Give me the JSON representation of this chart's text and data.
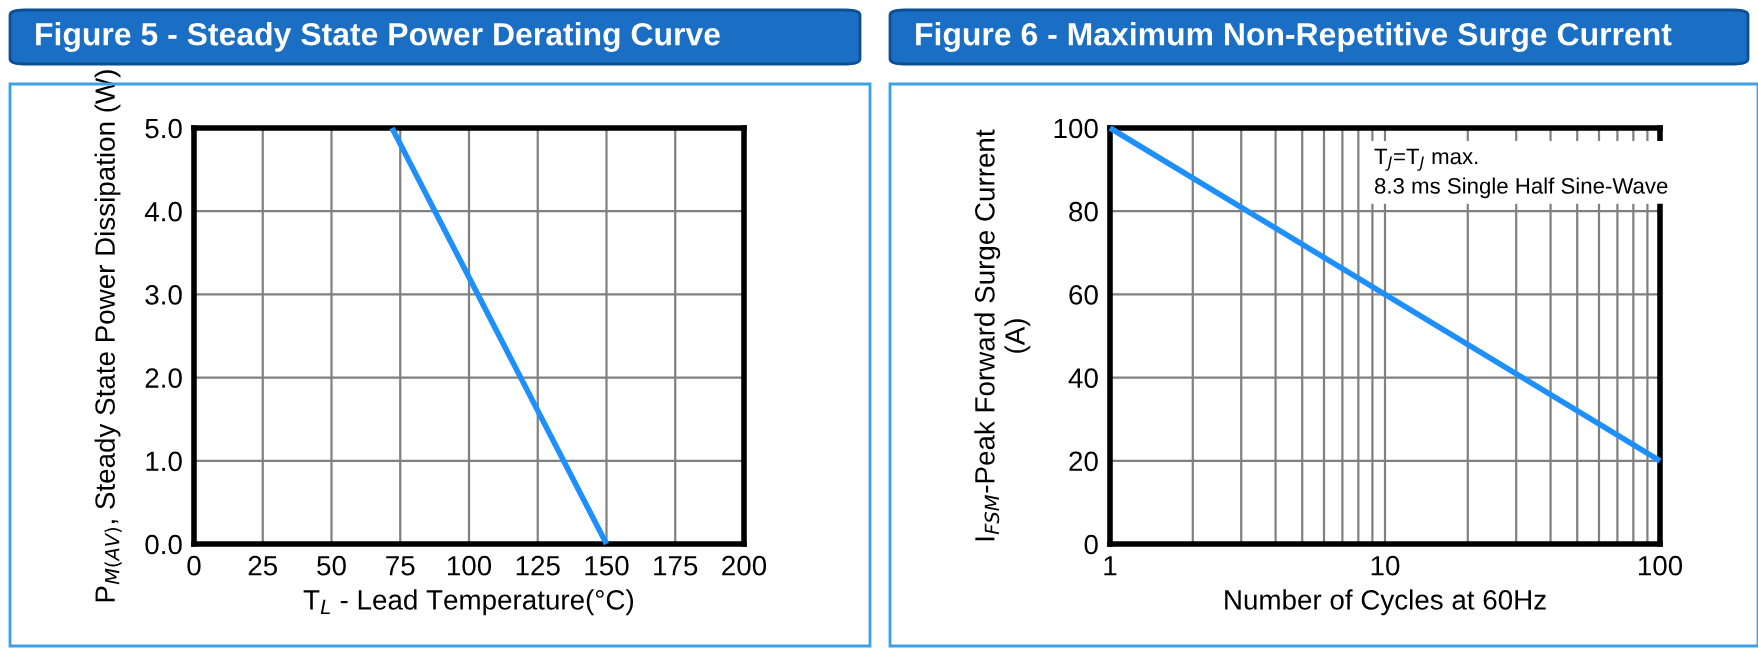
{
  "chart_data": [
    {
      "type": "line",
      "title": "Figure 5 - Steady State Power Derating Curve",
      "xlabel": "T$_{L}$ - Lead Temperature(°C)",
      "ylabel": "P$_{M(AV)}$, Steady State Power Dissipation (W)",
      "series": [
        {
          "color": "#1e8fff",
          "x": [
            72,
            150
          ],
          "values": [
            5.0,
            0.0
          ]
        }
      ],
      "xlim": [
        0,
        200
      ],
      "xticks": [
        0,
        25,
        50,
        75,
        100,
        125,
        150,
        175,
        200
      ],
      "ylim": [
        0,
        5
      ],
      "yticks": [
        {
          "value": 0,
          "label": "0.0"
        },
        {
          "value": 1,
          "label": "1.0"
        },
        {
          "value": 2,
          "label": "2.0"
        },
        {
          "value": 3,
          "label": "3.0"
        },
        {
          "value": 4,
          "label": "4.0"
        },
        {
          "value": 5,
          "label": "5.0"
        }
      ],
      "grid": true
    },
    {
      "type": "line",
      "title": "Figure 6 - Maximum Non-Repetitive Surge Current",
      "xlabel": "Number of Cycles at 60Hz",
      "ylabel": "I$_{FSM}$-Peak Forward Surge Current\n(A)",
      "annotations": [
        "T$_{J}$=T$_{J}$ max.\n8.3 ms Single Half Sine-Wave"
      ],
      "series": [
        {
          "color": "#1e8fff",
          "x": [
            1,
            100
          ],
          "values": [
            100,
            20
          ]
        }
      ],
      "log": "x",
      "xlim": [
        1,
        100
      ],
      "xticks": [
        1,
        10,
        100
      ],
      "ylim": [
        0,
        100
      ],
      "yticks": [
        0,
        20,
        40,
        60,
        80,
        100
      ],
      "grid": true
    }
  ]
}
